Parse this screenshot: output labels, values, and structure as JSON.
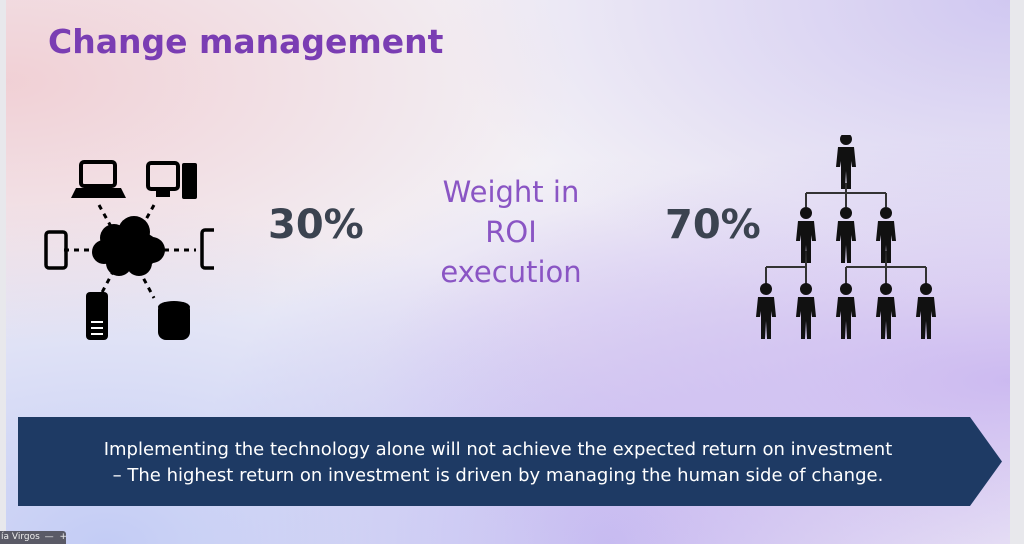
{
  "slide": {
    "title": "Change management",
    "technology_percent": "30%",
    "people_percent": "70%",
    "center_label_lines": [
      "Weight in",
      "ROI",
      "execution"
    ],
    "banner_lines": [
      "Implementing the technology alone will not achieve the expected return on investment",
      "– The highest return on investment is driven by managing the human side of change."
    ],
    "colors": {
      "title": "#7a3db3",
      "banner": "#1e3a64",
      "center_label": "#8a55c4"
    }
  },
  "participant": {
    "name": "ía Virgos",
    "minimize_label": "—",
    "add_label": "+"
  }
}
